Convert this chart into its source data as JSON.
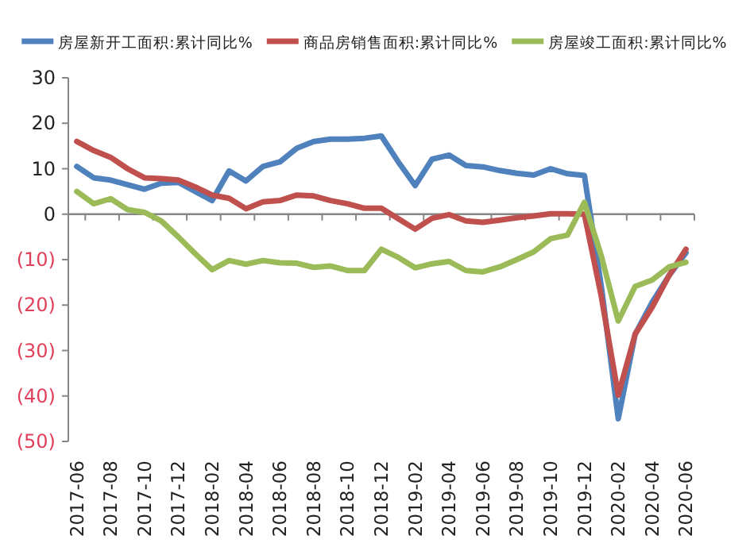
{
  "chart_data": {
    "type": "line",
    "categories": [
      "2017-06",
      null,
      "2017-08",
      null,
      "2017-10",
      null,
      "2017-12",
      null,
      "2018-02",
      null,
      "2018-04",
      null,
      "2018-06",
      null,
      "2018-08",
      null,
      "2018-10",
      null,
      "2018-12",
      null,
      "2019-02",
      null,
      "2019-04",
      null,
      "2019-06",
      null,
      "2019-08",
      null,
      "2019-10",
      null,
      "2019-12",
      null,
      "2020-02",
      null,
      "2020-04",
      null,
      "2020-06"
    ],
    "series": [
      {
        "name": "房屋新开工面积:累计同比%",
        "color": "#4f81bd",
        "values": [
          10.5,
          8,
          7.5,
          6.5,
          5.5,
          6.8,
          7,
          5,
          3,
          9.5,
          7.3,
          10.5,
          11.5,
          14.5,
          16,
          16.5,
          16.5,
          16.7,
          17.2,
          11.5,
          6.3,
          12.1,
          13,
          10.7,
          10.4,
          9.6,
          9,
          8.6,
          10,
          8.9,
          8.5,
          -15.9,
          -45,
          -26.4,
          -19.4,
          -13.5,
          -8.5
        ]
      },
      {
        "name": "商品房销售面积:累计同比%",
        "color": "#c0504d",
        "values": [
          16,
          14,
          12.5,
          10,
          8,
          7.8,
          7.5,
          6,
          4.2,
          3.5,
          1.2,
          2.7,
          3,
          4.2,
          4,
          3,
          2.3,
          1.3,
          1.3,
          -1,
          -3.3,
          -0.9,
          -0.1,
          -1.5,
          -1.8,
          -1.3,
          -0.8,
          -0.4,
          0.1,
          0.1,
          0,
          -18.1,
          -39.8,
          -26.4,
          -20.5,
          -13.5,
          -7.7
        ]
      },
      {
        "name": "房屋竣工面积:累计同比%",
        "color": "#9bbb59",
        "values": [
          5,
          2.3,
          3.4,
          1,
          0.4,
          -1.5,
          -5,
          -8.7,
          -12.2,
          -10.2,
          -11,
          -10.2,
          -10.7,
          -10.8,
          -11.7,
          -11.4,
          -12.4,
          -12.4,
          -7.7,
          -9.5,
          -11.8,
          -10.9,
          -10.4,
          -12.4,
          -12.7,
          -11.6,
          -10,
          -8.3,
          -5.4,
          -4.6,
          2.6,
          -9.2,
          -23.5,
          -15.9,
          -14.5,
          -11.6,
          -10.6
        ]
      }
    ],
    "ylim": [
      -50,
      30
    ],
    "yticks": [
      30,
      20,
      10,
      0,
      {
        "value": -10,
        "label": "(10)"
      },
      {
        "value": -20,
        "label": "(20)"
      },
      {
        "value": -30,
        "label": "(30)"
      },
      {
        "value": -40,
        "label": "(40)"
      },
      {
        "value": -50,
        "label": "(50)"
      }
    ],
    "legend": "top",
    "marker": "none",
    "line_style": "solid"
  }
}
